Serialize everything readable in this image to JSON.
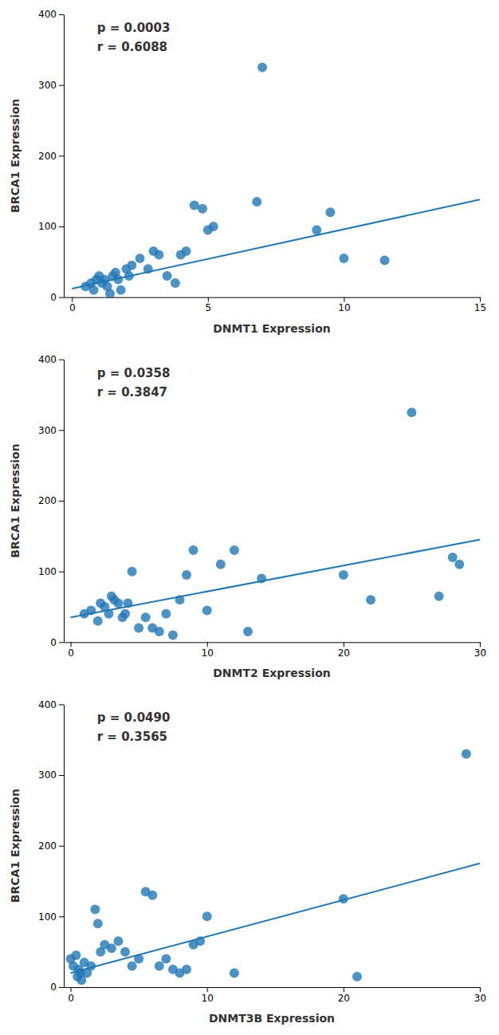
{
  "chart_data": [
    {
      "type": "scatter",
      "xlabel": "DNMT1 Expression",
      "ylabel": "BRCA1 Expression",
      "annotations": [
        "p = 0.0003",
        "r = 0.6088"
      ],
      "xlim": [
        -0.3,
        15
      ],
      "ylim": [
        0,
        400
      ],
      "xticks": [
        0,
        5,
        10,
        15
      ],
      "yticks": [
        0,
        100,
        200,
        300,
        400
      ],
      "series": [
        {
          "type": "scatter",
          "x": [
            0.5,
            0.7,
            0.8,
            0.9,
            1.0,
            1.1,
            1.2,
            1.3,
            1.4,
            1.5,
            1.6,
            1.7,
            1.8,
            2.0,
            2.1,
            2.2,
            2.5,
            2.8,
            3.0,
            3.2,
            3.5,
            3.8,
            4.0,
            4.2,
            4.5,
            4.8,
            5.0,
            5.2,
            7.0,
            6.8,
            9.0,
            9.5,
            10.0,
            11.5
          ],
          "values": [
            15,
            20,
            10,
            25,
            30,
            20,
            25,
            15,
            5,
            30,
            35,
            25,
            10,
            40,
            30,
            45,
            55,
            40,
            65,
            60,
            30,
            20,
            60,
            65,
            130,
            125,
            95,
            100,
            325,
            135,
            95,
            120,
            55,
            52
          ]
        },
        {
          "type": "line",
          "x": [
            0,
            15
          ],
          "values": [
            12,
            138
          ]
        }
      ]
    },
    {
      "type": "scatter",
      "xlabel": "DNMT2 Expression",
      "ylabel": "BRCA1 Expression",
      "annotations": [
        "p = 0.0358",
        "r = 0.3847"
      ],
      "xlim": [
        -0.5,
        30
      ],
      "ylim": [
        0,
        400
      ],
      "xticks": [
        0,
        10,
        20,
        30
      ],
      "yticks": [
        0,
        100,
        200,
        300,
        400
      ],
      "series": [
        {
          "type": "scatter",
          "x": [
            1.0,
            1.5,
            2.0,
            2.2,
            2.5,
            2.8,
            3.0,
            3.2,
            3.5,
            3.8,
            4.0,
            4.2,
            4.5,
            5.0,
            5.5,
            6.0,
            6.5,
            7.0,
            7.5,
            8.0,
            8.5,
            9.0,
            10.0,
            11.0,
            12.0,
            13.0,
            14.0,
            20.0,
            22.0,
            25.0,
            27.0,
            28.0,
            28.5
          ],
          "values": [
            40,
            45,
            30,
            55,
            50,
            40,
            65,
            60,
            55,
            35,
            40,
            55,
            100,
            20,
            35,
            20,
            15,
            40,
            10,
            60,
            95,
            130,
            45,
            110,
            130,
            15,
            90,
            95,
            60,
            325,
            65,
            120,
            110
          ]
        },
        {
          "type": "line",
          "x": [
            0,
            30
          ],
          "values": [
            35,
            145
          ]
        }
      ]
    },
    {
      "type": "scatter",
      "xlabel": "DNMT3B Expression",
      "ylabel": "BRCA1 Expression",
      "annotations": [
        "p = 0.0490",
        "r = 0.3565"
      ],
      "xlim": [
        -0.5,
        30
      ],
      "ylim": [
        0,
        400
      ],
      "xticks": [
        0,
        10,
        20,
        30
      ],
      "yticks": [
        0,
        100,
        200,
        300,
        400
      ],
      "series": [
        {
          "type": "scatter",
          "x": [
            0.0,
            0.2,
            0.4,
            0.5,
            0.6,
            0.7,
            0.8,
            1.0,
            1.2,
            1.5,
            1.8,
            2.0,
            2.2,
            2.5,
            3.0,
            3.5,
            4.0,
            4.5,
            5.0,
            5.5,
            6.0,
            6.5,
            7.0,
            7.5,
            8.0,
            8.5,
            9.0,
            9.5,
            10.0,
            12.0,
            20.0,
            21.0,
            29.0
          ],
          "values": [
            40,
            30,
            45,
            15,
            25,
            20,
            10,
            35,
            20,
            30,
            110,
            90,
            50,
            60,
            55,
            65,
            50,
            30,
            40,
            135,
            130,
            30,
            40,
            25,
            20,
            25,
            60,
            65,
            100,
            20,
            125,
            15,
            330
          ]
        },
        {
          "type": "line",
          "x": [
            0,
            30
          ],
          "values": [
            20,
            175
          ]
        }
      ]
    }
  ]
}
